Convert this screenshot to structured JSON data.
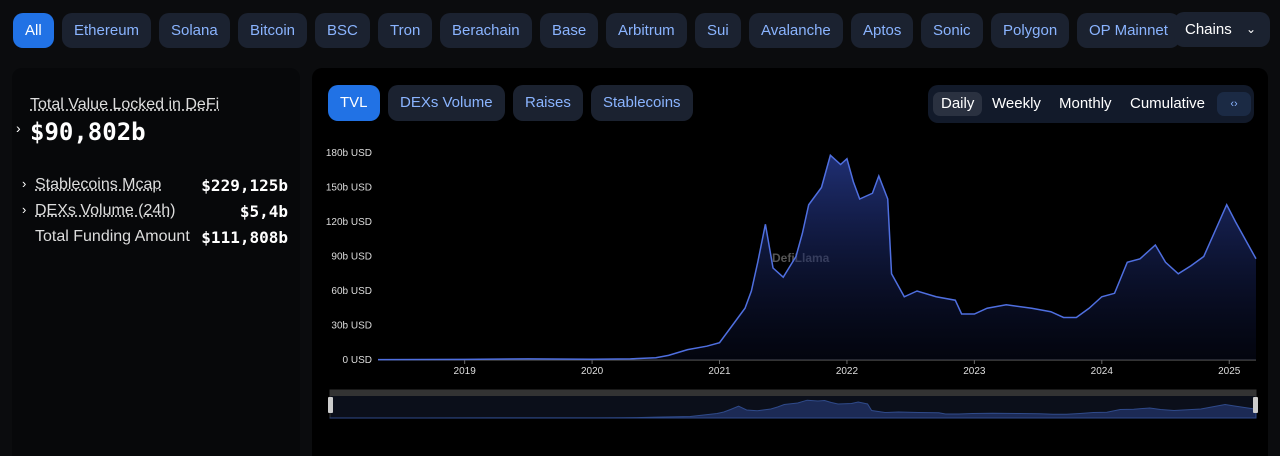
{
  "chain_tabs": [
    "All",
    "Ethereum",
    "Solana",
    "Bitcoin",
    "BSC",
    "Tron",
    "Berachain",
    "Base",
    "Arbitrum",
    "Sui",
    "Avalanche",
    "Aptos",
    "Sonic",
    "Polygon",
    "OP Mainnet"
  ],
  "chains_button": "Chains",
  "summary": {
    "title": "Total Value Locked in DeFi",
    "value": "$90,802b",
    "rows": [
      {
        "label": "Stablecoins Mcap",
        "value": "$229,125b"
      },
      {
        "label": "DEXs Volume (24h)",
        "value": "$5,4b"
      },
      {
        "label": "Total Funding Amount",
        "value": "$111,808b"
      }
    ]
  },
  "chart_tabs": [
    "TVL",
    "DEXs Volume",
    "Raises",
    "Stablecoins"
  ],
  "periods": [
    "Daily",
    "Weekly",
    "Monthly",
    "Cumulative"
  ],
  "chart_data": {
    "type": "area",
    "watermark": "DefiLlama",
    "color": "#4f6fe0",
    "x": [
      2018.32,
      2019.0,
      2019.5,
      2020.0,
      2020.3,
      2020.5,
      2020.6,
      2020.75,
      2020.9,
      2021.0,
      2021.1,
      2021.2,
      2021.25,
      2021.3,
      2021.36,
      2021.42,
      2021.5,
      2021.6,
      2021.65,
      2021.7,
      2021.8,
      2021.87,
      2021.95,
      2022.0,
      2022.05,
      2022.1,
      2022.2,
      2022.25,
      2022.32,
      2022.35,
      2022.45,
      2022.55,
      2022.7,
      2022.85,
      2022.9,
      2023.0,
      2023.1,
      2023.25,
      2023.45,
      2023.6,
      2023.7,
      2023.8,
      2023.9,
      2024.0,
      2024.1,
      2024.2,
      2024.3,
      2024.42,
      2024.5,
      2024.6,
      2024.7,
      2024.8,
      2024.9,
      2024.98,
      2025.05,
      2025.1,
      2025.15,
      2025.21
    ],
    "values": [
      0.3,
      0.5,
      1,
      0.7,
      1,
      2,
      4,
      9,
      12,
      15,
      30,
      45,
      60,
      85,
      118,
      80,
      72,
      90,
      110,
      135,
      150,
      178,
      170,
      175,
      155,
      140,
      145,
      160,
      140,
      75,
      55,
      60,
      55,
      52,
      40,
      40,
      45,
      48,
      45,
      42,
      37,
      37,
      45,
      55,
      58,
      85,
      88,
      100,
      85,
      75,
      82,
      90,
      115,
      135,
      120,
      110,
      100,
      88
    ],
    "xlim": [
      2018.32,
      2025.21
    ],
    "xticks": [
      2019,
      2020,
      2021,
      2022,
      2023,
      2024,
      2025
    ],
    "ylim": [
      0,
      180
    ],
    "yticks": [
      {
        "value": 0,
        "label": "0 USD"
      },
      {
        "value": 30,
        "label": "30b USD"
      },
      {
        "value": 60,
        "label": "60b USD"
      },
      {
        "value": 90,
        "label": "90b USD"
      },
      {
        "value": 120,
        "label": "120b USD"
      },
      {
        "value": 150,
        "label": "150b USD"
      },
      {
        "value": 180,
        "label": "180b USD"
      }
    ]
  }
}
